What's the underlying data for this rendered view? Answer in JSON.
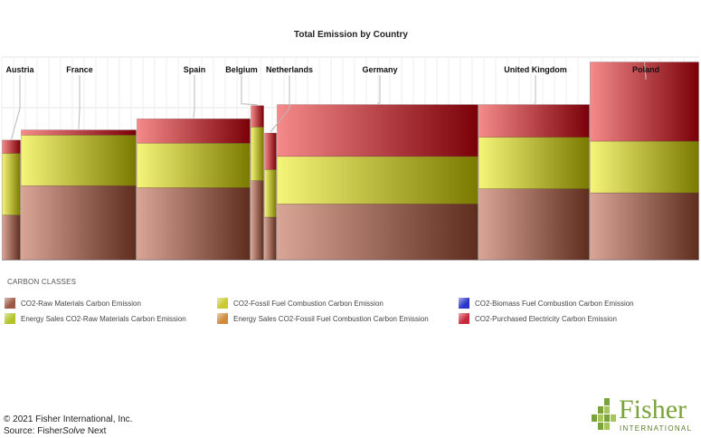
{
  "chart_data": {
    "type": "bar",
    "title": "Total Emission by Country",
    "categories": [
      "Austria",
      "France",
      "Spain",
      "Belgium",
      "Netherlands",
      "Germany",
      "United Kingdom",
      "Poland"
    ],
    "widths": [
      21,
      128,
      126,
      15,
      14,
      223,
      123,
      121
    ],
    "series": [
      {
        "name": "CO2-Raw Materials Carbon Emission",
        "values": [
          44,
          73,
          71,
          78,
          42,
          55,
          70,
          66
        ]
      },
      {
        "name": "Energy Sales CO2-Raw Materials Carbon Emission",
        "values": [
          0,
          0,
          0,
          0,
          0,
          0,
          0,
          0
        ]
      },
      {
        "name": "CO2-Fossil Fuel Combustion Carbon Emission",
        "values": [
          61,
          50,
          44,
          53,
          47,
          47,
          51,
          51
        ]
      },
      {
        "name": "Energy Sales CO2-Fossil Fuel Combustion Carbon Emission",
        "values": [
          0,
          0,
          0,
          0,
          0,
          0,
          0,
          0
        ]
      },
      {
        "name": "CO2-Biomass Fuel Combustion Carbon Emission",
        "values": [
          0,
          0,
          0,
          0,
          0,
          0,
          0,
          0
        ]
      },
      {
        "name": "CO2-Purchased Electricity Carbon Emission",
        "values": [
          13,
          5,
          24,
          21,
          36,
          51,
          32,
          78
        ]
      }
    ],
    "ylim": [
      0,
      200
    ],
    "grid": true,
    "legend_position": "bottom"
  },
  "legend": {
    "title": "CARBON CLASSES",
    "items": [
      {
        "label": "CO2-Raw Materials Carbon Emission",
        "color": "#9b5a45"
      },
      {
        "label": "CO2-Fossil Fuel Combustion Carbon Emission",
        "color": "#c9c930"
      },
      {
        "label": "CO2-Biomass Fuel Combustion Carbon Emission",
        "color": "#2a35c9"
      },
      {
        "label": "Energy Sales CO2-Raw Materials Carbon Emission",
        "color": "#b3c42a"
      },
      {
        "label": "Energy Sales CO2-Fossil Fuel Combustion Carbon Emission",
        "color": "#d08a3a"
      },
      {
        "label": "CO2-Purchased Electricity Carbon Emission",
        "color": "#c9283a"
      }
    ]
  },
  "footer": {
    "copyright": "© 2021 Fisher International, Inc.",
    "source_prefix": "Source: Fisher",
    "source_italic": "Solve",
    "source_suffix": " Next"
  },
  "logo": {
    "word": "Fisher",
    "sub": "INTERNATIONAL",
    "color": "#7aa33b"
  }
}
